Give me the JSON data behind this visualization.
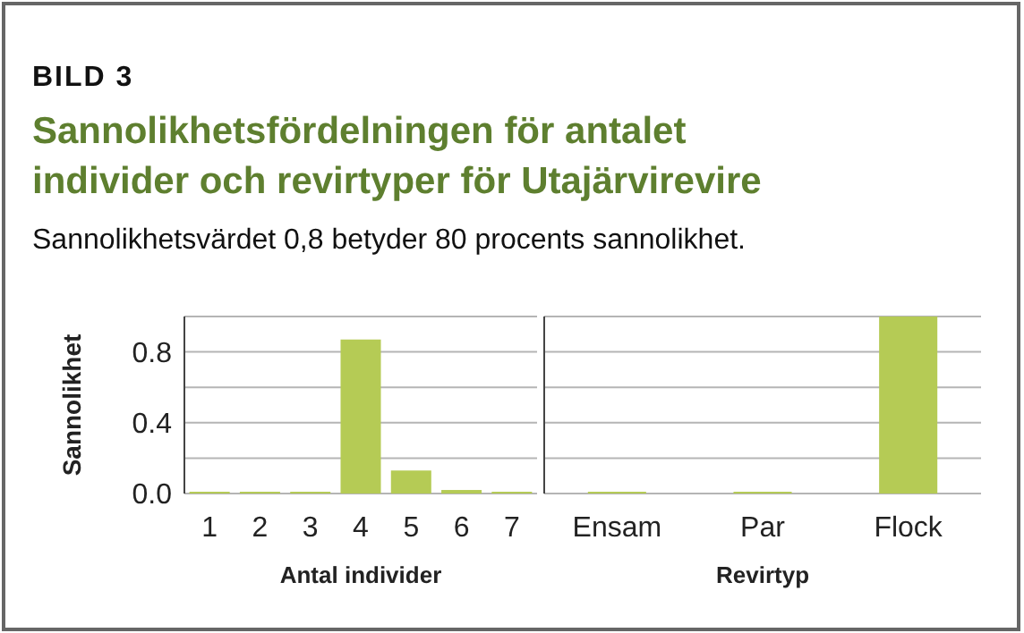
{
  "chart_data": [
    {
      "type": "bar",
      "title": "Sannolikhetsfördelningen för antalet individer och revirtyper för Utajärvirevire",
      "subtitle": "Sannolikhetsvärdet 0,8 betyder 80 procents sannolikhet.",
      "annotations": [
        "BILD 3"
      ],
      "xlabel": "Antal individer",
      "ylabel": "Sannolikhet",
      "categories": [
        "1",
        "2",
        "3",
        "4",
        "5",
        "6",
        "7"
      ],
      "values": [
        0.01,
        0.01,
        0.01,
        0.87,
        0.13,
        0.02,
        0.01
      ],
      "color": "#b5cb55",
      "ylim": [
        0,
        1
      ],
      "yticks": [
        {
          "value": 0,
          "label": "0.0"
        },
        {
          "value": 0.2,
          "label": null
        },
        {
          "value": 0.4,
          "label": "0.4"
        },
        {
          "value": 0.6,
          "label": null
        },
        {
          "value": 0.8,
          "label": "0.8"
        },
        {
          "value": 1,
          "label": null
        }
      ],
      "grid": "y"
    },
    {
      "type": "bar",
      "xlabel": "Revirtyp",
      "categories": [
        "Ensam",
        "Par",
        "Flock"
      ],
      "values": [
        0.01,
        0.01,
        1.0
      ],
      "color": "#b5cb55",
      "ylim": [
        0,
        1
      ],
      "yticks": [
        {
          "value": 0,
          "label": null
        },
        {
          "value": 0.2,
          "label": null
        },
        {
          "value": 0.4,
          "label": null
        },
        {
          "value": 0.6,
          "label": null
        },
        {
          "value": 0.8,
          "label": null
        },
        {
          "value": 1,
          "label": null
        }
      ],
      "grid": "y",
      "tick_labels": "x"
    }
  ]
}
